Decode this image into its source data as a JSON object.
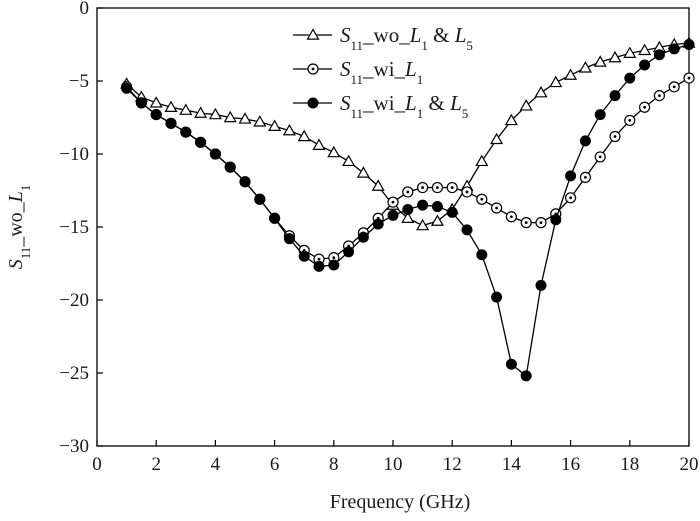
{
  "chart_data": {
    "type": "line",
    "title": "",
    "xlabel": "Frequency (GHz)",
    "ylabel": {
      "main": "S",
      "sub1": "11",
      "mid": "_wo_",
      "italic": "L",
      "sub2": "1"
    },
    "xlim": [
      0,
      20
    ],
    "ylim": [
      -30,
      0
    ],
    "x_ticks": [
      0,
      2,
      4,
      6,
      8,
      10,
      12,
      14,
      16,
      18,
      20
    ],
    "y_ticks": [
      0,
      -5,
      -10,
      -15,
      -20,
      -25,
      -30
    ],
    "x_tick_labels": [
      "0",
      "2",
      "4",
      "6",
      "8",
      "10",
      "12",
      "14",
      "16",
      "18",
      "20"
    ],
    "y_tick_labels": [
      "0",
      "−5",
      "−10",
      "−15",
      "−20",
      "−25",
      "−30"
    ],
    "grid": false,
    "legend_position": "top-right",
    "series": [
      {
        "name": "S11_wo_L1 & L5",
        "marker": "triangle-open",
        "x": [
          1,
          1.5,
          2,
          2.5,
          3,
          3.5,
          4,
          4.5,
          5,
          5.5,
          6,
          6.5,
          7,
          7.5,
          8,
          8.5,
          9,
          9.5,
          10,
          10.5,
          11,
          11.5,
          12,
          12.5,
          13,
          13.5,
          14,
          14.5,
          15,
          15.5,
          16,
          16.5,
          17,
          17.5,
          18,
          18.5,
          19,
          19.5,
          20
        ],
        "y": [
          -5.2,
          -6.1,
          -6.5,
          -6.8,
          -7.0,
          -7.2,
          -7.3,
          -7.5,
          -7.6,
          -7.8,
          -8.1,
          -8.4,
          -8.8,
          -9.4,
          -9.9,
          -10.5,
          -11.3,
          -12.2,
          -13.5,
          -14.4,
          -14.9,
          -14.6,
          -13.8,
          -12.2,
          -10.5,
          -9.0,
          -7.7,
          -6.7,
          -5.8,
          -5.1,
          -4.6,
          -4.1,
          -3.7,
          -3.4,
          -3.1,
          -2.9,
          -2.7,
          -2.5,
          -2.4
        ]
      },
      {
        "name": "S11_wi_L1",
        "marker": "circle-dot",
        "x": [
          1,
          1.5,
          2,
          2.5,
          3,
          3.5,
          4,
          4.5,
          5,
          5.5,
          6,
          6.5,
          7,
          7.5,
          8,
          8.5,
          9,
          9.5,
          10,
          10.5,
          11,
          11.5,
          12,
          12.5,
          13,
          13.5,
          14,
          14.5,
          15,
          15.5,
          16,
          16.5,
          17,
          17.5,
          18,
          18.5,
          19,
          19.5,
          20
        ],
        "y": [
          -5.4,
          -6.5,
          -7.3,
          -7.9,
          -8.5,
          -9.2,
          -10.0,
          -10.9,
          -11.9,
          -13.1,
          -14.4,
          -15.6,
          -16.6,
          -17.2,
          -17.1,
          -16.3,
          -15.4,
          -14.4,
          -13.3,
          -12.6,
          -12.3,
          -12.3,
          -12.3,
          -12.6,
          -13.1,
          -13.7,
          -14.3,
          -14.7,
          -14.7,
          -14.1,
          -13.0,
          -11.6,
          -10.2,
          -8.8,
          -7.7,
          -6.8,
          -6.0,
          -5.4,
          -4.8
        ]
      },
      {
        "name": "S11_wi_L1 & L5",
        "marker": "circle-filled",
        "x": [
          1,
          1.5,
          2,
          2.5,
          3,
          3.5,
          4,
          4.5,
          5,
          5.5,
          6,
          6.5,
          7,
          7.5,
          8,
          8.5,
          9,
          9.5,
          10,
          10.5,
          11,
          11.5,
          12,
          12.5,
          13,
          13.5,
          14,
          14.5,
          15,
          15.5,
          16,
          16.5,
          17,
          17.5,
          18,
          18.5,
          19,
          19.5,
          20
        ],
        "y": [
          -5.5,
          -6.5,
          -7.3,
          -7.9,
          -8.5,
          -9.2,
          -10.0,
          -10.9,
          -11.9,
          -13.1,
          -14.4,
          -15.8,
          -17.0,
          -17.7,
          -17.6,
          -16.7,
          -15.7,
          -14.8,
          -14.2,
          -13.8,
          -13.5,
          -13.6,
          -14.0,
          -15.2,
          -16.9,
          -19.8,
          -24.4,
          -25.2,
          -19.0,
          -14.5,
          -11.5,
          -9.1,
          -7.3,
          -6.0,
          -4.8,
          -3.9,
          -3.2,
          -2.8,
          -2.5
        ]
      }
    ],
    "legend": [
      {
        "main": "S",
        "sub1": "11",
        "mid": "_wo_",
        "italic": "L",
        "sub2": "1",
        "tail": " & ",
        "italic2": "L",
        "sub3": "5"
      },
      {
        "main": "S",
        "sub1": "11",
        "mid": "_wi_",
        "italic": "L",
        "sub2": "1",
        "tail": "",
        "italic2": "",
        "sub3": ""
      },
      {
        "main": "S",
        "sub1": "11",
        "mid": "_wi_",
        "italic": "L",
        "sub2": "1",
        "tail": " & ",
        "italic2": "L",
        "sub3": "5"
      }
    ]
  }
}
